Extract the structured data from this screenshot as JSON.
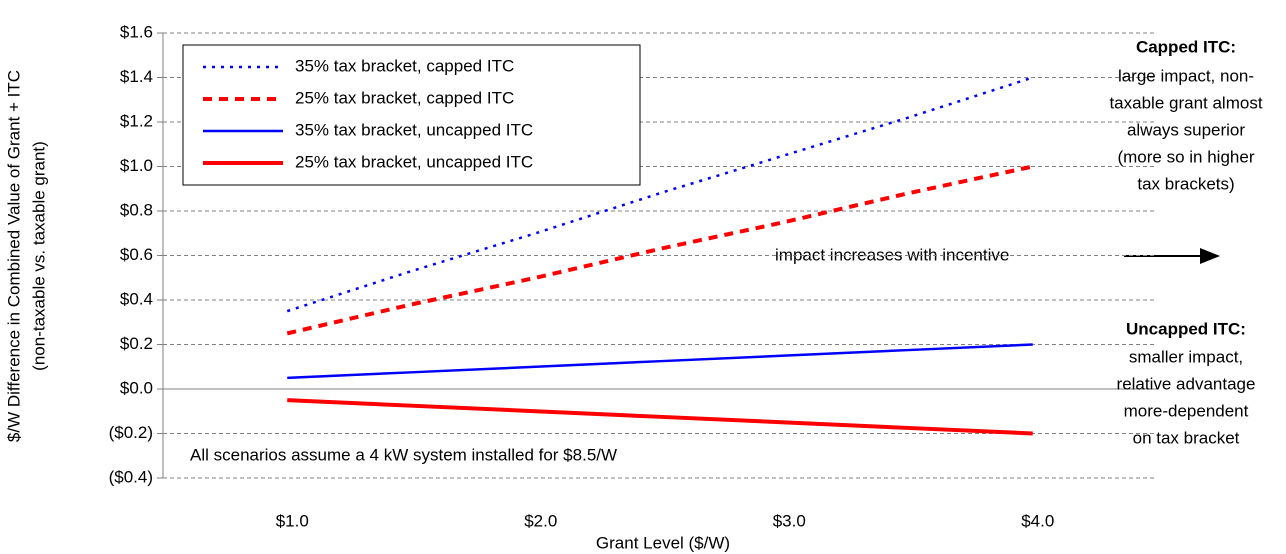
{
  "chart_data": {
    "type": "line",
    "y_label": [
      "$/W Difference in Combined Value of Grant + ITC",
      "(non-taxable vs. taxable grant)"
    ],
    "x_label": "Grant Level ($/W)",
    "x": [
      1.0,
      1.5,
      2.0,
      2.5,
      3.0,
      3.5,
      4.0
    ],
    "xlim": [
      0.5,
      4.5
    ],
    "xticks": [
      {
        "value": 1,
        "label": "$1.0"
      },
      {
        "value": 2,
        "label": "$2.0"
      },
      {
        "value": 3,
        "label": "$3.0"
      },
      {
        "value": 4,
        "label": "$4.0"
      }
    ],
    "ylim": [
      -0.4,
      1.6
    ],
    "yticks": [
      {
        "value": -0.4,
        "label": "($0.4)"
      },
      {
        "value": -0.2,
        "label": "($0.2)"
      },
      {
        "value": 0,
        "label": "$0.0"
      },
      {
        "value": 0.2,
        "label": "$0.2"
      },
      {
        "value": 0.4,
        "label": "$0.4"
      },
      {
        "value": 0.6,
        "label": "$0.6"
      },
      {
        "value": 0.8,
        "label": "$0.8"
      },
      {
        "value": 1.0,
        "label": "$1.0"
      },
      {
        "value": 1.2,
        "label": "$1.2"
      },
      {
        "value": 1.4,
        "label": "$1.4"
      },
      {
        "value": 1.6,
        "label": "$1.6"
      }
    ],
    "grid": true,
    "legend": "upper left",
    "series": [
      {
        "name": "35% tax bracket, capped ITC",
        "color": "#0000ff",
        "line_style": "dotted",
        "line_weight": "thin",
        "values": [
          0.35,
          0.53,
          0.7,
          0.88,
          1.05,
          1.22,
          1.4
        ]
      },
      {
        "name": "25% tax bracket, capped ITC",
        "color": "#ff0000",
        "line_style": "dashed",
        "line_weight": "thick",
        "values": [
          0.25,
          0.38,
          0.5,
          0.63,
          0.75,
          0.88,
          1.0
        ]
      },
      {
        "name": "35% tax bracket, uncapped ITC",
        "color": "#0000ff",
        "line_style": "solid",
        "line_weight": "thin",
        "values": [
          0.05,
          0.075,
          0.1,
          0.125,
          0.15,
          0.175,
          0.2
        ]
      },
      {
        "name": "25% tax bracket, uncapped ITC",
        "color": "#ff0000",
        "line_style": "solid",
        "line_weight": "thick",
        "values": [
          -0.05,
          -0.075,
          -0.1,
          -0.125,
          -0.15,
          -0.175,
          -0.2
        ]
      }
    ],
    "annotations": {
      "capped": {
        "heading": "Capped ITC:",
        "lines": [
          "large impact, non-",
          "taxable grant almost",
          "always superior",
          "(more so in higher",
          "tax brackets)"
        ]
      },
      "uncapped": {
        "heading": "Uncapped ITC:",
        "lines": [
          "smaller impact,",
          "relative advantage",
          "more-dependent",
          "on tax bracket"
        ]
      },
      "trend": "impact increases with incentive",
      "note": "All scenarios assume a 4 kW system installed for $8.5/W"
    }
  }
}
